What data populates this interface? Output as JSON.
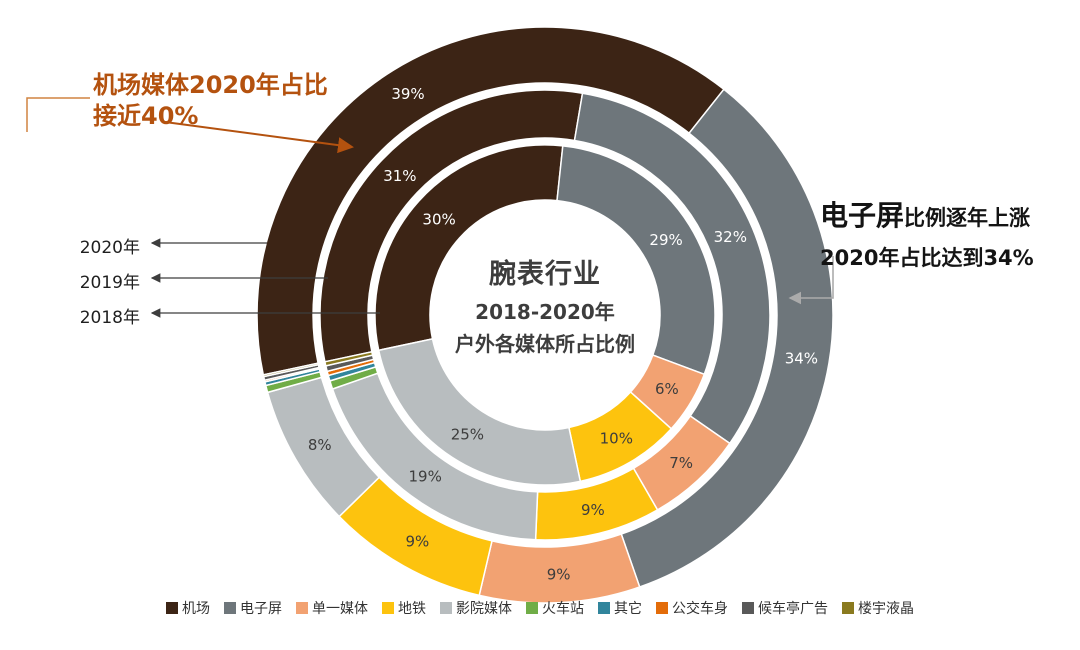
{
  "title": {
    "line1": "腕表行业",
    "line2": "2018-2020年",
    "line3": "户外各媒体所占比例"
  },
  "annotations": {
    "airport": {
      "line1": "机场媒体2020年占比",
      "line2": "接近40%",
      "color": "#b4520f"
    },
    "screen": {
      "highlight": "电子屏",
      "line1_rest": "比例逐年上涨",
      "line2": "2020年占比达到34%"
    },
    "years": [
      "2020年",
      "2019年",
      "2018年"
    ]
  },
  "legend": [
    {
      "label": "机场",
      "color": "#3c2415"
    },
    {
      "label": "电子屏",
      "color": "#6e767b"
    },
    {
      "label": "单一媒体",
      "color": "#f2a272"
    },
    {
      "label": "地铁",
      "color": "#fdc30e"
    },
    {
      "label": "影院媒体",
      "color": "#b8bdbf"
    },
    {
      "label": "火车站",
      "color": "#70ad47"
    },
    {
      "label": "其它",
      "color": "#31859c"
    },
    {
      "label": "公交车身",
      "color": "#e36c09"
    },
    {
      "label": "候车亭广告",
      "color": "#595959"
    },
    {
      "label": "楼宇液晶",
      "color": "#8a7a1f"
    }
  ],
  "chart_data": {
    "type": "pie",
    "subtype": "multi-ring-donut",
    "title": "腕表行业 2018-2020年 户外各媒体所占比例",
    "categories": [
      "机场",
      "电子屏",
      "单一媒体",
      "地铁",
      "影院媒体",
      "火车站",
      "其它",
      "公交车身",
      "候车亭广告",
      "楼宇液晶"
    ],
    "colors": [
      "#3c2415",
      "#6e767b",
      "#f2a272",
      "#fdc30e",
      "#b8bdbf",
      "#70ad47",
      "#31859c",
      "#e36c09",
      "#595959",
      "#8a7a1f"
    ],
    "start_angle_deg": 258,
    "direction": "clockwise",
    "legend_position": "bottom",
    "rings": [
      {
        "year": "2020年",
        "position": "outer",
        "values": [
          39,
          34,
          9,
          9,
          8,
          0.4,
          0.2,
          0.1,
          0.2,
          0.1
        ]
      },
      {
        "year": "2019年",
        "position": "middle",
        "values": [
          31,
          32,
          7,
          9,
          19,
          0.6,
          0.4,
          0.3,
          0.4,
          0.3
        ]
      },
      {
        "year": "2018年",
        "position": "inner",
        "values": [
          30,
          29,
          6,
          10,
          25,
          0,
          0,
          0,
          0,
          0
        ]
      }
    ],
    "label_threshold": 6,
    "label_format": "percent",
    "label_colors": {
      "on_dark": "#ffffff",
      "on_light": "#3d3d3d"
    }
  }
}
